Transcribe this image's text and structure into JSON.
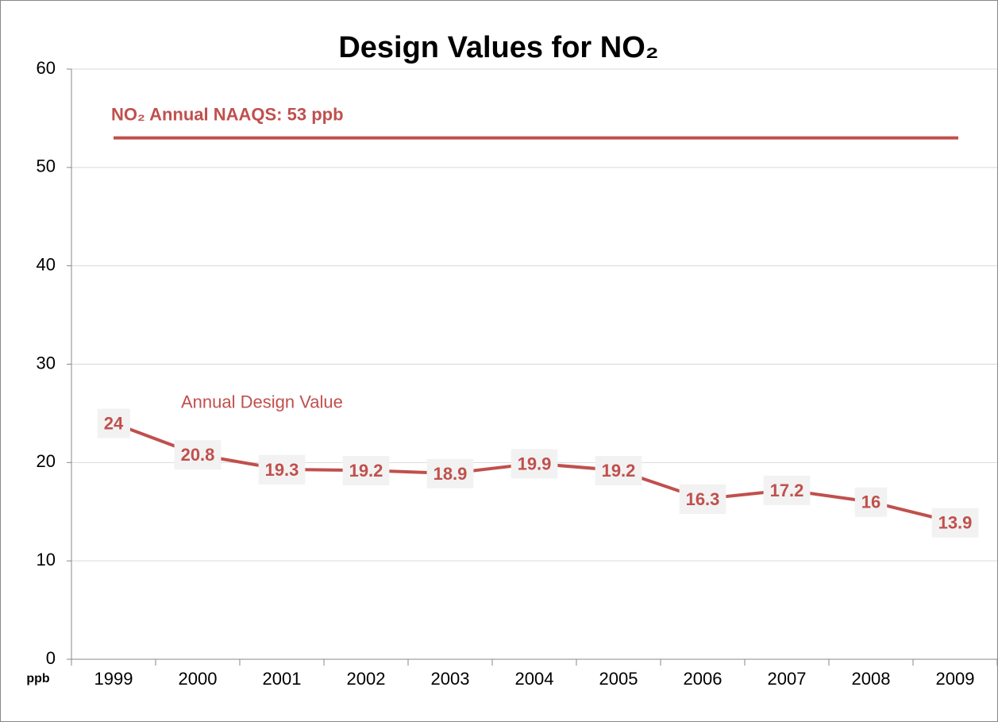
{
  "chart_data": {
    "type": "line",
    "title": "Design Values for NO₂",
    "y_label": "ppb",
    "categories": [
      "1999",
      "2000",
      "2001",
      "2002",
      "2003",
      "2004",
      "2005",
      "2006",
      "2007",
      "2008",
      "2009"
    ],
    "series": [
      {
        "name": "Annual Design Value",
        "color": "#c0504d",
        "values": [
          24,
          20.8,
          19.3,
          19.2,
          18.9,
          19.9,
          19.2,
          16.3,
          17.2,
          16,
          13.9
        ]
      }
    ],
    "standard": {
      "label": "NO₂ Annual NAAQS: 53 ppb",
      "value": 53,
      "color": "#c0504d"
    },
    "ylim": [
      0,
      60
    ],
    "yticks": [
      0,
      10,
      20,
      30,
      40,
      50,
      60
    ],
    "grid": true
  }
}
